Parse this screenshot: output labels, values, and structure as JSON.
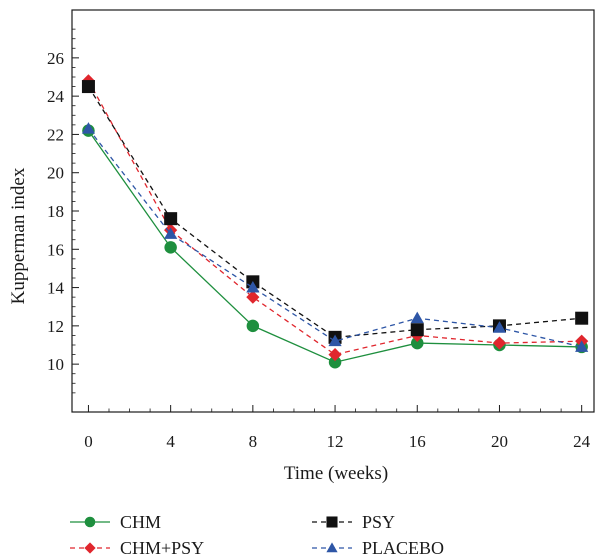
{
  "chart_data": {
    "type": "line",
    "xlabel": "Time (weeks)",
    "ylabel": "Kupperman index",
    "x": [
      0,
      4,
      8,
      12,
      16,
      20,
      24
    ],
    "xlim": [
      -0.8,
      24.6
    ],
    "ylim": [
      7.5,
      28.5
    ],
    "xticks": [
      0,
      4,
      8,
      12,
      16,
      20,
      24
    ],
    "yticks": [
      10,
      12,
      14,
      16,
      18,
      20,
      22,
      24,
      26
    ],
    "grid": false,
    "legend_position": "bottom",
    "series": [
      {
        "name": "CHM",
        "values": [
          22.2,
          16.1,
          12.0,
          10.1,
          11.1,
          11.0,
          10.9
        ],
        "color": "#1e8f3e",
        "dash": "solid",
        "marker": "circle"
      },
      {
        "name": "CHM+PSY",
        "values": [
          24.8,
          17.0,
          13.5,
          10.5,
          11.5,
          11.1,
          11.2
        ],
        "color": "#e0262d",
        "dash": "dashed",
        "marker": "diamond"
      },
      {
        "name": "PSY",
        "values": [
          24.5,
          17.6,
          14.3,
          11.4,
          11.8,
          12.0,
          12.4
        ],
        "color": "#111111",
        "dash": "dashed",
        "marker": "square"
      },
      {
        "name": "PLACEBO",
        "values": [
          22.3,
          16.8,
          14.0,
          11.2,
          12.4,
          11.9,
          10.9
        ],
        "color": "#2e56a6",
        "dash": "dashed",
        "marker": "triangle"
      }
    ]
  }
}
